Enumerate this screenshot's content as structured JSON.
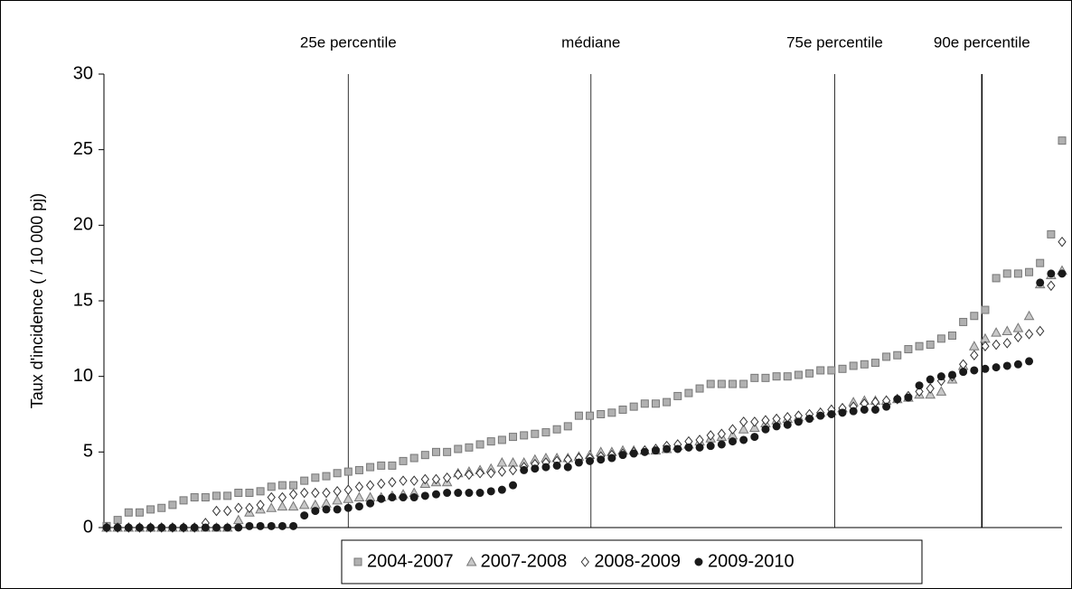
{
  "chart_data": {
    "type": "scatter",
    "y_label": "Taux d'incidence ( / 10 000 pj)",
    "ylim": [
      0,
      30
    ],
    "yticks": [
      0,
      5,
      10,
      15,
      20,
      25,
      30
    ],
    "xlim": [
      0,
      87
    ],
    "vlines": [
      {
        "value": 22,
        "label": "25e percentile"
      },
      {
        "value": 44.1,
        "label": "médiane"
      },
      {
        "value": 66.3,
        "label": "75e percentile"
      },
      {
        "value": 79.7,
        "label": "90e percentile"
      }
    ],
    "x": [
      0,
      1,
      2,
      3,
      4,
      5,
      6,
      7,
      8,
      9,
      10,
      11,
      12,
      13,
      14,
      15,
      16,
      17,
      18,
      19,
      20,
      21,
      22,
      23,
      24,
      25,
      26,
      27,
      28,
      29,
      30,
      31,
      32,
      33,
      34,
      35,
      36,
      37,
      38,
      39,
      40,
      41,
      42,
      43,
      44,
      45,
      46,
      47,
      48,
      49,
      50,
      51,
      52,
      53,
      54,
      55,
      56,
      57,
      58,
      59,
      60,
      61,
      62,
      63,
      64,
      65,
      66,
      67,
      68,
      69,
      70,
      71,
      72,
      73,
      74,
      75,
      76,
      77,
      78,
      79,
      80,
      81,
      82,
      83,
      84,
      85,
      86,
      87
    ],
    "legend": "bottom",
    "series": [
      {
        "name": "2004-2007",
        "marker": "square",
        "color": "#b0b0b0",
        "values": [
          0.1,
          0.5,
          1.0,
          1.0,
          1.2,
          1.3,
          1.5,
          1.8,
          2.0,
          2.0,
          2.1,
          2.1,
          2.3,
          2.3,
          2.4,
          2.7,
          2.8,
          2.8,
          3.1,
          3.3,
          3.4,
          3.6,
          3.7,
          3.8,
          4.0,
          4.1,
          4.1,
          4.4,
          4.6,
          4.8,
          5.0,
          5.0,
          5.2,
          5.3,
          5.5,
          5.7,
          5.8,
          6.0,
          6.1,
          6.2,
          6.3,
          6.5,
          6.7,
          7.4,
          7.4,
          7.5,
          7.6,
          7.8,
          8.0,
          8.2,
          8.2,
          8.3,
          8.7,
          8.9,
          9.2,
          9.5,
          9.5,
          9.5,
          9.5,
          9.9,
          9.9,
          10.0,
          10.0,
          10.1,
          10.2,
          10.4,
          10.4,
          10.5,
          10.7,
          10.8,
          10.9,
          11.3,
          11.4,
          11.8,
          12.0,
          12.1,
          12.5,
          12.7,
          13.6,
          14.0,
          14.4,
          16.5,
          16.8,
          16.8,
          16.9,
          17.5,
          19.4,
          25.6
        ]
      },
      {
        "name": "2007-2008",
        "marker": "triangle",
        "color": "#c8c8c8",
        "values": [
          0,
          0,
          0,
          0,
          0,
          0,
          0,
          0,
          0,
          0,
          0,
          0,
          0.5,
          1.0,
          1.2,
          1.3,
          1.4,
          1.4,
          1.5,
          1.5,
          1.6,
          1.8,
          1.9,
          2.0,
          2.0,
          2.0,
          2.1,
          2.2,
          2.3,
          2.9,
          3.0,
          3.0,
          3.6,
          3.7,
          3.8,
          3.9,
          4.3,
          4.3,
          4.3,
          4.5,
          4.6,
          4.6,
          4.6,
          4.7,
          4.8,
          5.0,
          5.0,
          5.1,
          5.1,
          5.1,
          5.1,
          5.2,
          5.4,
          5.5,
          5.7,
          5.9,
          6.0,
          6.1,
          6.5,
          6.6,
          6.9,
          7.1,
          7.2,
          7.3,
          7.4,
          7.6,
          7.7,
          7.9,
          8.3,
          8.4,
          8.4,
          8.4,
          8.5,
          8.6,
          8.8,
          8.8,
          9.0,
          9.8,
          10.7,
          12.0,
          12.5,
          12.9,
          13.0,
          13.2,
          14.0,
          16.1,
          16.7,
          17.0
        ]
      },
      {
        "name": "2008-2009",
        "marker": "diamond",
        "color": "#ffffff",
        "values": [
          0,
          0,
          0,
          0,
          0,
          0,
          0,
          0,
          0,
          0.3,
          1.1,
          1.1,
          1.3,
          1.3,
          1.5,
          2.0,
          2.0,
          2.2,
          2.3,
          2.3,
          2.3,
          2.4,
          2.5,
          2.7,
          2.8,
          2.9,
          3.0,
          3.1,
          3.1,
          3.2,
          3.2,
          3.3,
          3.5,
          3.5,
          3.6,
          3.6,
          3.7,
          3.8,
          4.0,
          4.2,
          4.3,
          4.4,
          4.5,
          4.6,
          4.6,
          4.7,
          4.8,
          4.9,
          5.0,
          5.1,
          5.2,
          5.4,
          5.5,
          5.7,
          5.8,
          6.1,
          6.2,
          6.5,
          7.0,
          7.0,
          7.1,
          7.2,
          7.3,
          7.4,
          7.5,
          7.6,
          7.8,
          7.9,
          8.0,
          8.2,
          8.3,
          8.4,
          8.5,
          8.7,
          9.0,
          9.2,
          9.7,
          10.0,
          10.8,
          11.4,
          12.0,
          12.1,
          12.2,
          12.6,
          12.8,
          13.0,
          16.0,
          18.9
        ]
      },
      {
        "name": "2009-2010",
        "marker": "circle",
        "color": "#1a1a1a",
        "values": [
          0,
          0,
          0,
          0,
          0,
          0,
          0,
          0,
          0,
          0,
          0,
          0,
          0,
          0.1,
          0.1,
          0.1,
          0.1,
          0.1,
          0.8,
          1.1,
          1.2,
          1.2,
          1.3,
          1.4,
          1.6,
          1.9,
          2.0,
          2.0,
          2.0,
          2.1,
          2.2,
          2.3,
          2.3,
          2.3,
          2.3,
          2.4,
          2.5,
          2.8,
          3.8,
          3.9,
          4.0,
          4.1,
          4.0,
          4.3,
          4.4,
          4.5,
          4.6,
          4.8,
          4.9,
          5.0,
          5.1,
          5.2,
          5.2,
          5.3,
          5.3,
          5.4,
          5.5,
          5.7,
          5.8,
          6.0,
          6.5,
          6.7,
          6.8,
          7.0,
          7.2,
          7.4,
          7.5,
          7.6,
          7.7,
          7.8,
          7.8,
          8.0,
          8.5,
          8.6,
          9.4,
          9.8,
          10.0,
          10.1,
          10.3,
          10.4,
          10.5,
          10.6,
          10.7,
          10.8,
          11.0,
          16.2,
          16.8,
          16.8
        ]
      }
    ]
  }
}
